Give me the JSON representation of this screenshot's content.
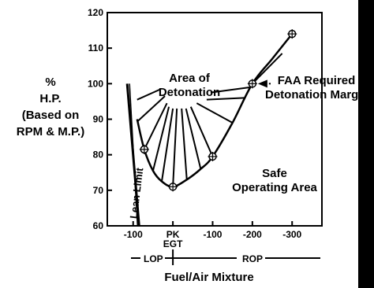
{
  "colors": {
    "ink": "#000000",
    "background": "#ffffff",
    "edge_bar": "#000000"
  },
  "y_axis_label": {
    "line1": "%",
    "line2": "H.P.",
    "line3": "(Based on",
    "line4": "RPM & M.P.)"
  },
  "x_axis_label": "Fuel/Air Mixture",
  "mixture_scale": {
    "lean": "LOP",
    "rich": "ROP"
  },
  "annotations": {
    "detonation_area": {
      "line1": "Area of",
      "line2": "Detonation"
    },
    "safe_area": {
      "line1": "Safe",
      "line2": "Operating Area"
    },
    "faa_margin": {
      "line1": "FAA Required",
      "line2": "Detonation Margin"
    },
    "lean_limit": "Lean Limit"
  },
  "chart_data": {
    "type": "line",
    "title": "",
    "xlabel": "Fuel/Air Mixture",
    "ylabel": "% H.P. (Based on RPM & M.P.)",
    "x_tick_labels": [
      "-100",
      "PK",
      "-100",
      "-200",
      "-300"
    ],
    "x_tick_sublabel": "EGT",
    "x_tick_positions": [
      -1,
      0,
      1,
      2,
      3
    ],
    "y_ticks": [
      60,
      70,
      80,
      90,
      100,
      110,
      120
    ],
    "ylim": [
      60,
      120
    ],
    "xlim": [
      -1.65,
      3.75
    ],
    "grid": false,
    "series": [
      {
        "kind": "detonation-boundary",
        "x": [
          -0.9,
          -0.72,
          -0.5,
          -0.28,
          0.0,
          0.35,
          0.7,
          1.0,
          1.5,
          2.0,
          2.5,
          3.0
        ],
        "y": [
          90,
          81.5,
          75.5,
          72.5,
          71,
          73,
          76,
          79.5,
          89,
          100,
          107,
          114
        ]
      },
      {
        "kind": "lean-limit",
        "x": [
          -1.15,
          -0.85
        ],
        "y": [
          100,
          60
        ]
      }
    ],
    "markers": [
      {
        "x": -0.72,
        "y": 81.5
      },
      {
        "x": 0.0,
        "y": 71
      },
      {
        "x": 1.0,
        "y": 79.5
      },
      {
        "x": 2.0,
        "y": 100
      },
      {
        "x": 3.0,
        "y": 114
      }
    ],
    "faa_margin_line": {
      "from": {
        "x": 2.0,
        "y": 100
      },
      "to": {
        "x": 2.75,
        "y": 108.5
      }
    },
    "detonation_hatch": [
      {
        "x1": -0.9,
        "y1": 95.5,
        "x2": -0.3,
        "y2": 98.5
      },
      {
        "x1": -0.88,
        "y1": 89.5,
        "x2": -0.2,
        "y2": 96.5
      },
      {
        "x1": -0.72,
        "y1": 81.5,
        "x2": -0.15,
        "y2": 94.5
      },
      {
        "x1": -0.5,
        "y1": 75.5,
        "x2": -0.1,
        "y2": 93.5
      },
      {
        "x1": -0.28,
        "y1": 72.5,
        "x2": 0.0,
        "y2": 93.0
      },
      {
        "x1": 0.0,
        "y1": 71,
        "x2": 0.1,
        "y2": 93.0
      },
      {
        "x1": 0.35,
        "y1": 73,
        "x2": 0.22,
        "y2": 93.0
      },
      {
        "x1": 0.7,
        "y1": 76,
        "x2": 0.33,
        "y2": 93.0
      },
      {
        "x1": 1.0,
        "y1": 79.5,
        "x2": 0.45,
        "y2": 93.5
      },
      {
        "x1": 1.5,
        "y1": 89,
        "x2": 0.6,
        "y2": 94.5
      },
      {
        "x1": 1.8,
        "y1": 96,
        "x2": 0.85,
        "y2": 95.5
      },
      {
        "x1": 1.95,
        "y1": 99,
        "x2": 0.95,
        "y2": 97.5
      }
    ],
    "legend": "none"
  }
}
